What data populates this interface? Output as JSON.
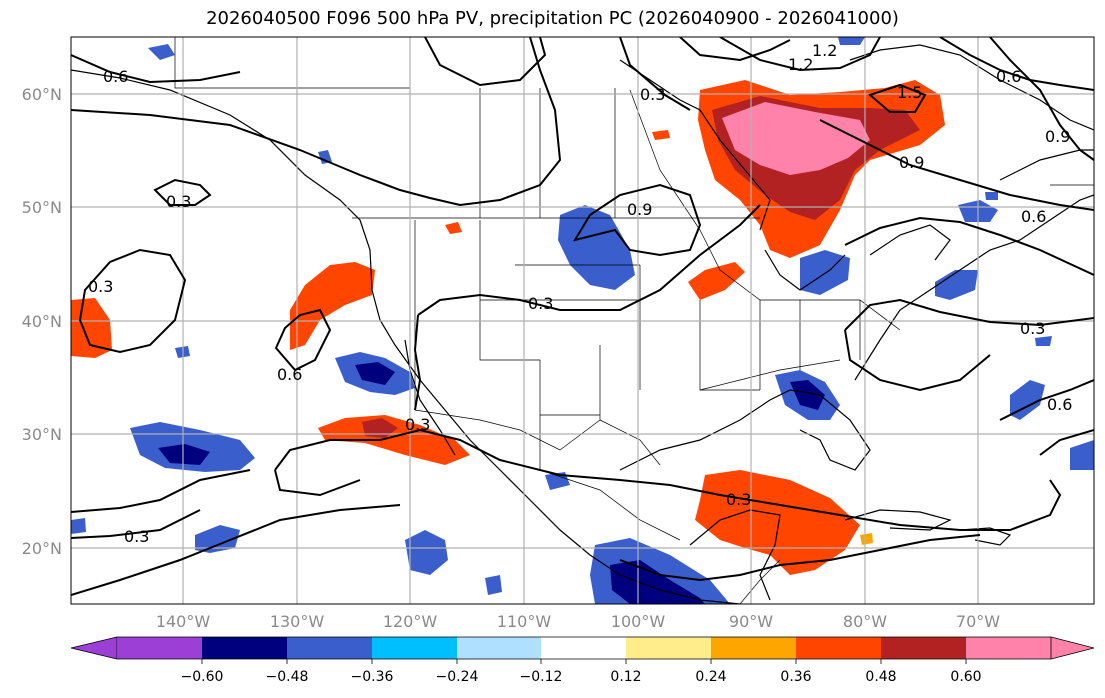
{
  "title": "2026040500 F096 500 hPa PV, precipitation PC (2026040900 - 2026041000)",
  "colors": {
    "land_border": "#000000",
    "grid": "#b0b0b0",
    "contour": "#000000",
    "scale": [
      "#9b3fd6",
      "#00007f",
      "#3a5fcd",
      "#00bfff",
      "#b0e0ff",
      "#ffffff",
      "#ffec8b",
      "#ffa500",
      "#ff4500",
      "#b22222",
      "#ff82ab"
    ]
  },
  "axes": {
    "lat_labels": [
      "60°N",
      "50°N",
      "40°N",
      "30°N",
      "20°N"
    ],
    "lon_labels": [
      "140°W",
      "130°W",
      "120°W",
      "110°W",
      "100°W",
      "90°W",
      "80°W",
      "70°W"
    ]
  },
  "colorbar": {
    "ticks": [
      "−0.60",
      "−0.48",
      "−0.36",
      "−0.24",
      "−0.12",
      "0.12",
      "0.24",
      "0.36",
      "0.48",
      "0.60"
    ]
  },
  "contour_labels": [
    "0.6",
    "0.3",
    "0.3",
    "0.3",
    "0.6",
    "0.3",
    "0.3",
    "0.9",
    "0.3",
    "1.2",
    "1.5",
    "0.6",
    "0.9",
    "0.9",
    "0.6",
    "0.3",
    "0.6",
    "0.3",
    "1.2"
  ]
}
